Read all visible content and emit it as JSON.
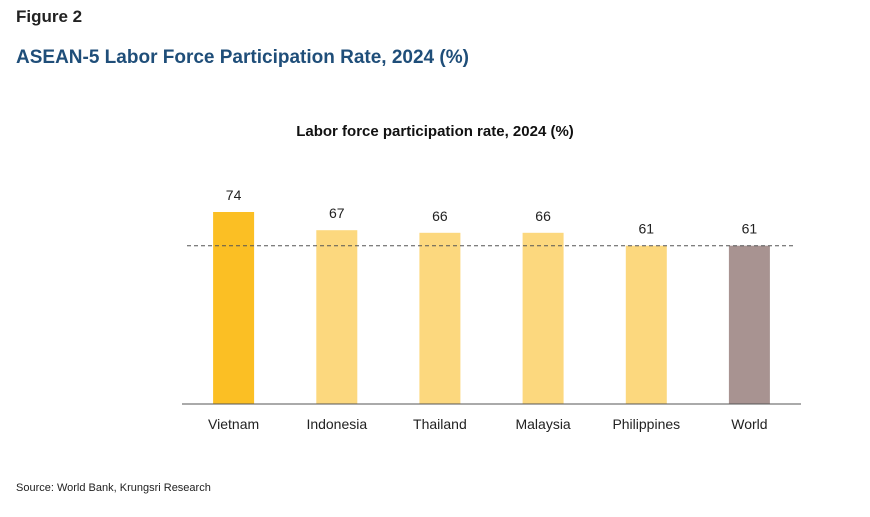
{
  "figure_label": "Figure 2",
  "figure_title": "ASEAN-5 Labor Force Participation Rate, 2024 (%)",
  "source": "Source: World Bank, Krungsri Research",
  "colors": {
    "highlight": "#fbbf24",
    "asean": "#fcd87e",
    "world": "#a89391",
    "reference_line": "#555555",
    "axis": "#555555"
  },
  "chart_data": {
    "type": "bar",
    "title": "Labor force participation rate, 2024 (%)",
    "xlabel": "",
    "ylabel": "",
    "categories": [
      "Vietnam",
      "Indonesia",
      "Thailand",
      "Malaysia",
      "Philippines",
      "World"
    ],
    "values": [
      74,
      67,
      66,
      66,
      61,
      61
    ],
    "bar_colors": [
      "highlight",
      "asean",
      "asean",
      "asean",
      "asean",
      "world"
    ],
    "data_labels": [
      "74",
      "67",
      "66",
      "66",
      "61",
      "61"
    ],
    "reference_line": {
      "value": 61,
      "style": "dashed"
    },
    "ylim": [
      0,
      74
    ],
    "grid": false,
    "legend": "none"
  }
}
